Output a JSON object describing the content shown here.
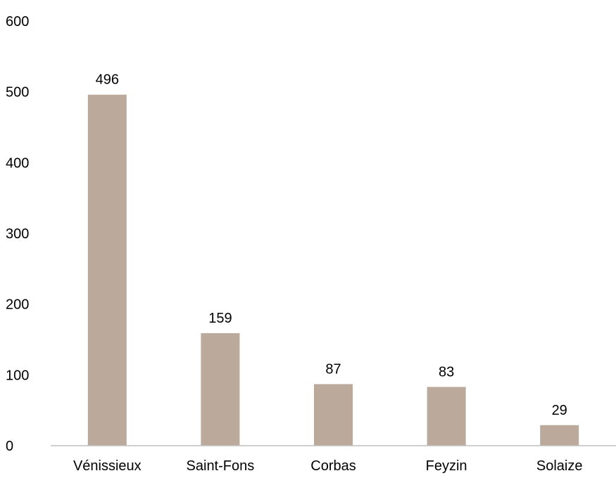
{
  "chart_data": {
    "type": "bar",
    "categories": [
      "Vénissieux",
      "Saint-Fons",
      "Corbas",
      "Feyzin",
      "Solaize"
    ],
    "values": [
      496,
      159,
      87,
      83,
      29
    ],
    "data_labels": [
      "496",
      "159",
      "87",
      "83",
      "29"
    ],
    "yticks": [
      "0",
      "100",
      "200",
      "300",
      "400",
      "500",
      "600"
    ],
    "ylim": [
      0,
      600
    ],
    "title": "",
    "xlabel": "",
    "ylabel": "",
    "grid": false,
    "legend": "none",
    "bar_color": "#bba99b",
    "axis_color": "#bfbfbf"
  }
}
